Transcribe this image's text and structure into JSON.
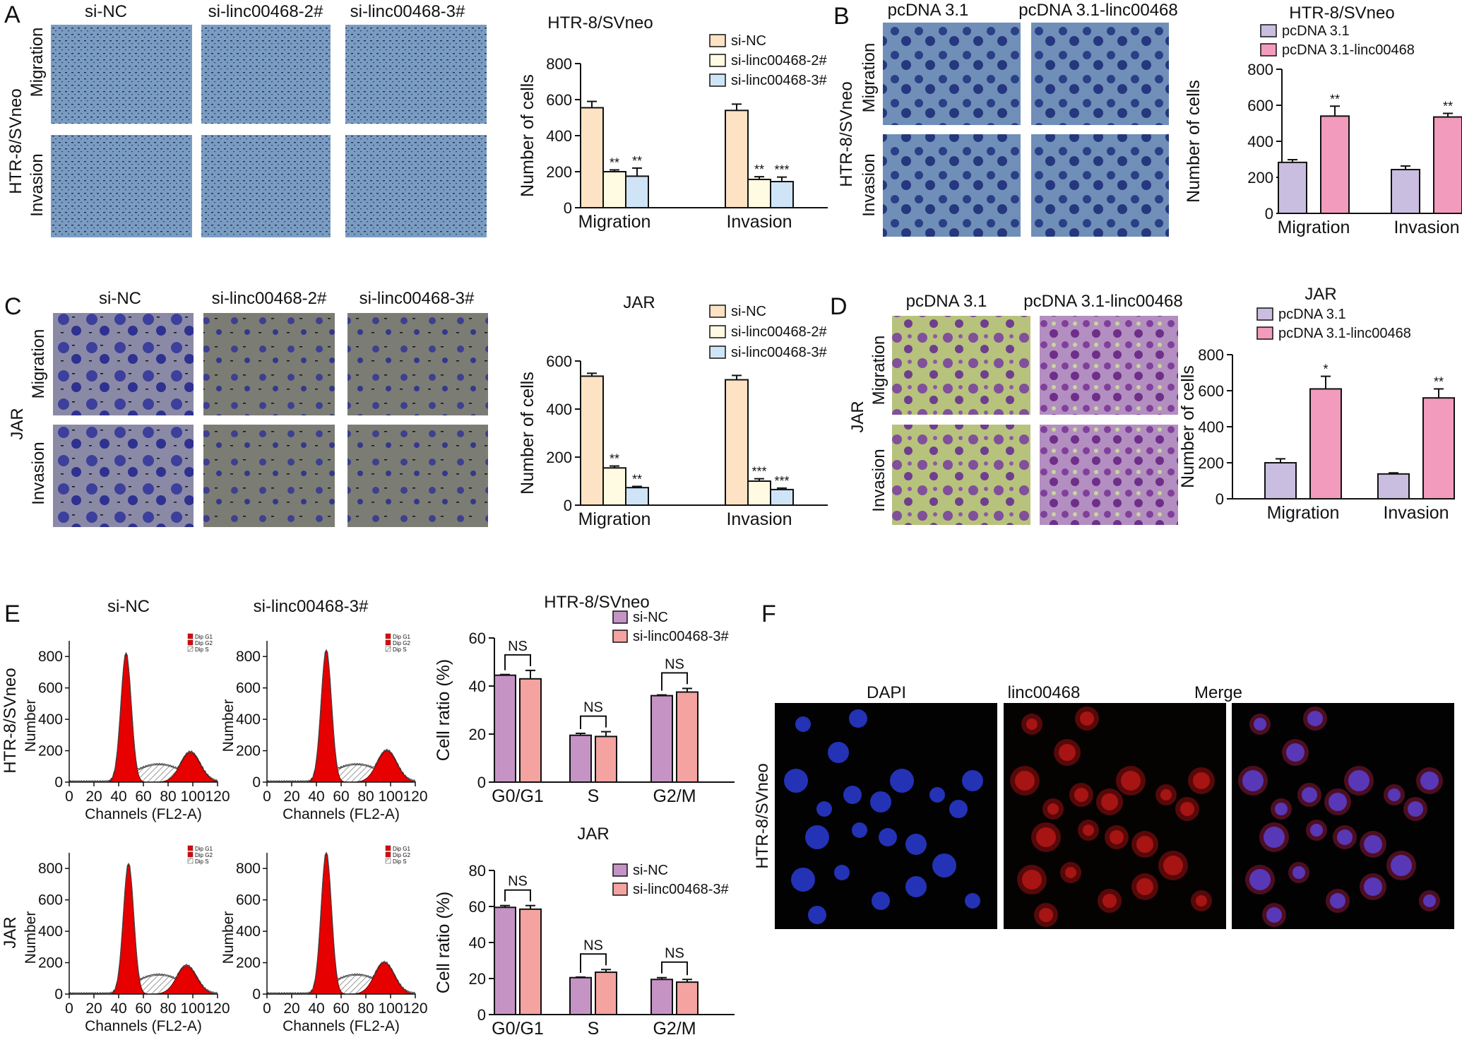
{
  "colors": {
    "siNC": "#fde3c3",
    "si2": "#fffbe3",
    "si3": "#cfe4f7",
    "pcdna": "#c9bde0",
    "pcdnaLinc": "#f29bbd",
    "purple": "#c594c5",
    "salmon": "#f4a3a0",
    "facsRed": "#e60000"
  },
  "panels": {
    "A": {
      "letter": "A",
      "side_label": "HTR-8/SVneo",
      "col_labels": [
        "si-NC",
        "si-linc00468-2#",
        "si-linc00468-3#"
      ],
      "row_labels": [
        "Migration",
        "Invasion"
      ]
    },
    "B": {
      "letter": "B",
      "side_label": "HTR-8/SVneo",
      "col_labels": [
        "pcDNA 3.1",
        "pcDNA 3.1-linc00468"
      ],
      "row_labels": [
        "Migration",
        "Invasion"
      ]
    },
    "C": {
      "letter": "C",
      "side_label": "JAR",
      "col_labels": [
        "si-NC",
        "si-linc00468-2#",
        "si-linc00468-3#"
      ],
      "row_labels": [
        "Migration",
        "Invasion"
      ]
    },
    "D": {
      "letter": "D",
      "side_label": "JAR",
      "col_labels": [
        "pcDNA 3.1",
        "pcDNA 3.1-linc00468"
      ],
      "row_labels": [
        "Migration",
        "Invasion"
      ]
    },
    "E": {
      "letter": "E",
      "col_labels": [
        "si-NC",
        "si-linc00468-3#"
      ],
      "row_labels": [
        "HTR-8/SVneo",
        "JAR"
      ],
      "facs_xlabel": "Channels (FL2-A)",
      "facs_ylabel": "Number",
      "facs_xticks": [
        "0",
        "20",
        "40",
        "60",
        "80",
        "100",
        "120"
      ],
      "facs_yticks": [
        "0",
        "200",
        "400",
        "600",
        "800"
      ],
      "facs_legend": [
        "Dip G1",
        "Dip G2",
        "Dip S"
      ]
    },
    "F": {
      "letter": "F",
      "side_label": "HTR-8/SVneo",
      "col_labels": [
        "DAPI",
        "linc00468",
        "Merge"
      ]
    }
  },
  "chart_data": [
    {
      "id": "A",
      "type": "bar",
      "title": "HTR-8/SVneo",
      "ylabel": "Number of cells",
      "ylim": [
        0,
        800
      ],
      "yticks": [
        0,
        200,
        400,
        600,
        800
      ],
      "categories": [
        "Migration",
        "Invasion"
      ],
      "series": [
        {
          "name": "si-NC",
          "values": [
            555,
            540
          ],
          "err": [
            35,
            35
          ],
          "sig": [
            "",
            ""
          ]
        },
        {
          "name": "si-linc00468-2#",
          "values": [
            200,
            157
          ],
          "err": [
            10,
            15
          ],
          "sig": [
            "**",
            "**"
          ]
        },
        {
          "name": "si-linc00468-3#",
          "values": [
            175,
            145
          ],
          "err": [
            45,
            25
          ],
          "sig": [
            "**",
            "***"
          ]
        }
      ],
      "legend": "top-right"
    },
    {
      "id": "B",
      "type": "bar",
      "title": "HTR-8/SVneo",
      "ylabel": "Number of cells",
      "ylim": [
        0,
        800
      ],
      "yticks": [
        0,
        200,
        400,
        600,
        800
      ],
      "categories": [
        "Migration",
        "Invasion"
      ],
      "series": [
        {
          "name": "pcDNA 3.1",
          "values": [
            283,
            243
          ],
          "err": [
            15,
            20
          ],
          "sig": [
            "",
            ""
          ]
        },
        {
          "name": "pcDNA 3.1-linc00468",
          "values": [
            540,
            535
          ],
          "err": [
            55,
            20
          ],
          "sig": [
            "**",
            "**"
          ]
        }
      ],
      "legend": "top"
    },
    {
      "id": "C",
      "type": "bar",
      "title": "JAR",
      "ylabel": "Number of cells",
      "ylim": [
        0,
        600
      ],
      "yticks": [
        0,
        200,
        400,
        600
      ],
      "categories": [
        "Migration",
        "Invasion"
      ],
      "series": [
        {
          "name": "si-NC",
          "values": [
            537,
            522
          ],
          "err": [
            12,
            18
          ],
          "sig": [
            "",
            ""
          ]
        },
        {
          "name": "si-linc00468-2#",
          "values": [
            155,
            100
          ],
          "err": [
            8,
            10
          ],
          "sig": [
            "**",
            "***"
          ]
        },
        {
          "name": "si-linc00468-3#",
          "values": [
            73,
            65
          ],
          "err": [
            5,
            6
          ],
          "sig": [
            "**",
            "***"
          ]
        }
      ],
      "legend": "top-right"
    },
    {
      "id": "D",
      "type": "bar",
      "title": "JAR",
      "ylabel": "Number of cells",
      "ylim": [
        0,
        800
      ],
      "yticks": [
        0,
        200,
        400,
        600,
        800
      ],
      "categories": [
        "Migration",
        "Invasion"
      ],
      "series": [
        {
          "name": "pcDNA 3.1",
          "values": [
            200,
            138
          ],
          "err": [
            22,
            6
          ],
          "sig": [
            "",
            ""
          ]
        },
        {
          "name": "pcDNA 3.1-linc00468",
          "values": [
            610,
            560
          ],
          "err": [
            70,
            50
          ],
          "sig": [
            "*",
            "**"
          ]
        }
      ],
      "legend": "top"
    },
    {
      "id": "E1",
      "type": "bar",
      "title": "HTR-8/SVneo",
      "ylabel": "Cell ratio (%)",
      "ylim": [
        0,
        60
      ],
      "yticks": [
        0,
        20,
        40,
        60
      ],
      "categories": [
        "G0/G1",
        "S",
        "G2/M"
      ],
      "series": [
        {
          "name": "si-NC",
          "values": [
            44.5,
            19.5,
            36
          ],
          "err": [
            0.3,
            0.8,
            0.3
          ]
        },
        {
          "name": "si-linc00468-3#",
          "values": [
            43,
            19,
            37.5
          ],
          "err": [
            3.5,
            2,
            1.5
          ]
        }
      ],
      "annotations": [
        "NS",
        "NS",
        "NS"
      ],
      "legend": "top-right"
    },
    {
      "id": "E2",
      "type": "bar",
      "title": "JAR",
      "ylabel": "Cell ratio (%)",
      "ylim": [
        0,
        80
      ],
      "yticks": [
        0,
        20,
        40,
        60,
        80
      ],
      "categories": [
        "G0/G1",
        "S",
        "G2/M"
      ],
      "series": [
        {
          "name": "si-NC",
          "values": [
            59.5,
            20.5,
            19.5
          ],
          "err": [
            1,
            0.3,
            1
          ]
        },
        {
          "name": "si-linc00468-3#",
          "values": [
            58.5,
            23.5,
            18
          ],
          "err": [
            2,
            1.5,
            1.5
          ]
        }
      ],
      "annotations": [
        "NS",
        "NS",
        "NS"
      ],
      "legend": "top-right"
    }
  ]
}
